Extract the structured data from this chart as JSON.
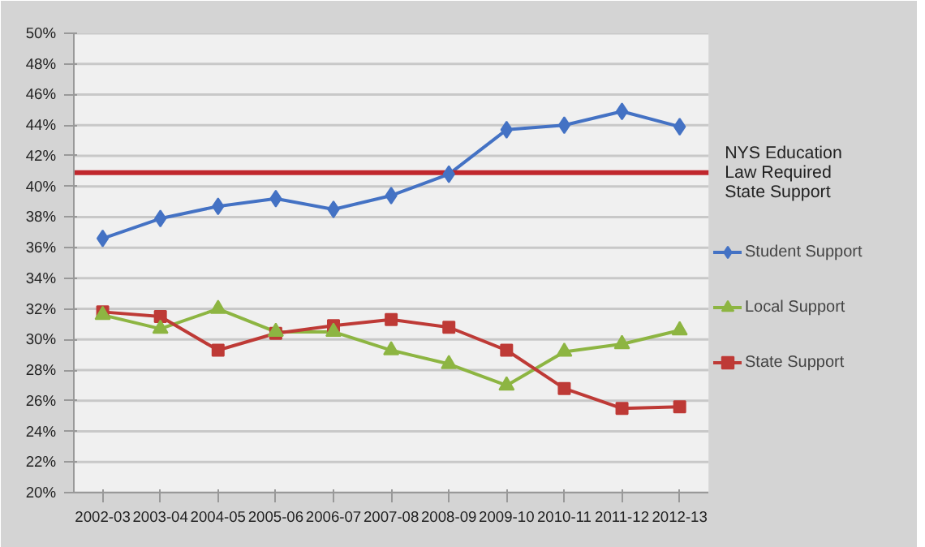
{
  "chart_data": {
    "type": "line",
    "categories": [
      "2002-03",
      "2003-04",
      "2004-05",
      "2005-06",
      "2006-07",
      "2007-08",
      "2008-09",
      "2009-10",
      "2010-11",
      "2011-12",
      "2012-13"
    ],
    "series": [
      {
        "name": "Student Support",
        "color": "#4472c4",
        "marker": "diamond",
        "values": [
          36.6,
          37.9,
          38.7,
          39.2,
          38.5,
          39.4,
          40.8,
          43.7,
          44.0,
          44.9,
          43.9
        ]
      },
      {
        "name": "Local Support",
        "color": "#8db542",
        "marker": "triangle",
        "values": [
          31.6,
          30.7,
          32.0,
          30.5,
          30.5,
          29.3,
          28.4,
          27.0,
          29.2,
          29.7,
          30.6
        ]
      },
      {
        "name": "State Support",
        "color": "#be3a36",
        "marker": "square",
        "values": [
          31.8,
          31.5,
          29.3,
          30.4,
          30.9,
          31.3,
          30.8,
          29.3,
          26.8,
          25.5,
          25.6
        ]
      }
    ],
    "ylim": [
      20,
      50
    ],
    "yticks": [
      {
        "value": 20,
        "label": "20%"
      },
      {
        "value": 22,
        "label": "22%"
      },
      {
        "value": 24,
        "label": "24%"
      },
      {
        "value": 26,
        "label": "26%"
      },
      {
        "value": 28,
        "label": "28%"
      },
      {
        "value": 30,
        "label": "30%"
      },
      {
        "value": 32,
        "label": "32%"
      },
      {
        "value": 34,
        "label": "34%"
      },
      {
        "value": 36,
        "label": "36%"
      },
      {
        "value": 38,
        "label": "38%"
      },
      {
        "value": 40,
        "label": "40%"
      },
      {
        "value": 42,
        "label": "42%"
      },
      {
        "value": 44,
        "label": "44%"
      },
      {
        "value": 46,
        "label": "46%"
      },
      {
        "value": 48,
        "label": "48%"
      },
      {
        "value": 50,
        "label": "50%"
      }
    ],
    "ref_lines": [
      {
        "axis": "y",
        "value": 40.9,
        "label": "NYS Education\nLaw Required\nState Support",
        "color": "#c0272d",
        "line_style": "solid"
      }
    ],
    "grid": "y",
    "legend": "right",
    "line_style": "solid"
  }
}
